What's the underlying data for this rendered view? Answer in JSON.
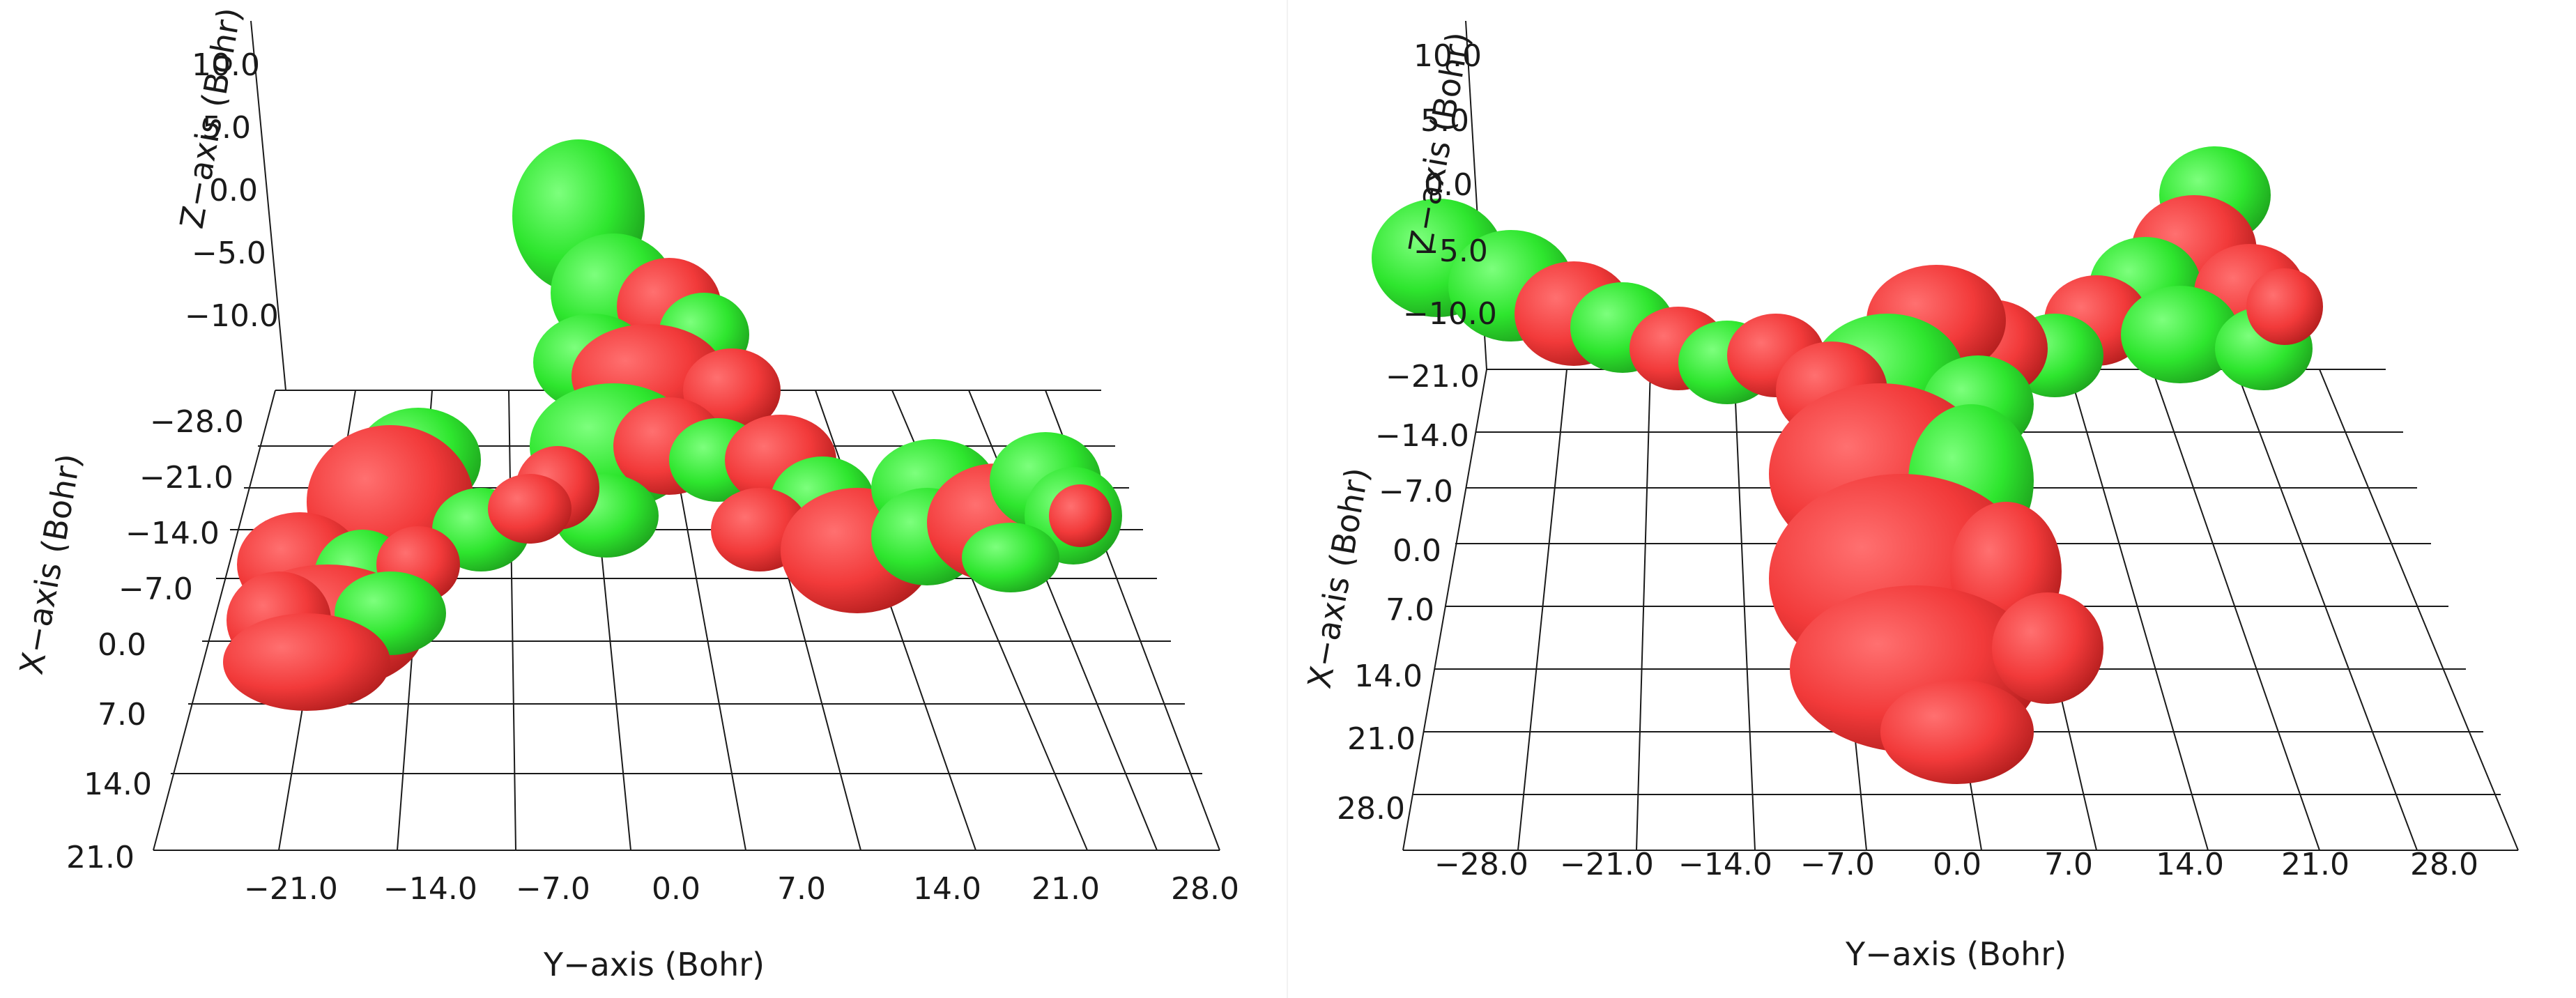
{
  "panels": [
    {
      "z_axis": {
        "label": "Z−axis (Bohr)",
        "ticks": [
          "10.0",
          "5.0",
          "0.0",
          "−5.0",
          "−10.0"
        ]
      },
      "x_axis": {
        "label": "X−axis (Bohr)",
        "ticks": [
          "−28.0",
          "−21.0",
          "−14.0",
          "−7.0",
          "0.0",
          "7.0",
          "14.0",
          "21.0"
        ]
      },
      "y_axis": {
        "label": "Y−axis (Bohr)",
        "ticks": [
          "−21.0",
          "−14.0",
          "−7.0",
          "0.0",
          "7.0",
          "14.0",
          "21.0",
          "28.0"
        ]
      }
    },
    {
      "z_axis": {
        "label": "Z−axis (Bohr)",
        "ticks": [
          "10.0",
          "5.0",
          "0.0",
          "−5.0",
          "−10.0"
        ]
      },
      "x_axis": {
        "label": "X−axis (Bohr)",
        "ticks": [
          "−21.0",
          "−14.0",
          "−7.0",
          "0.0",
          "7.0",
          "14.0",
          "21.0",
          "28.0"
        ]
      },
      "y_axis": {
        "label": "Y−axis (Bohr)",
        "ticks": [
          "−28.0",
          "−21.0",
          "−14.0",
          "−7.0",
          "0.0",
          "7.0",
          "14.0",
          "21.0",
          "28.0"
        ]
      }
    }
  ],
  "colors": {
    "positive_lobe": "#32e532",
    "negative_lobe": "#f23a3a",
    "grid": "#1a1a1a"
  }
}
